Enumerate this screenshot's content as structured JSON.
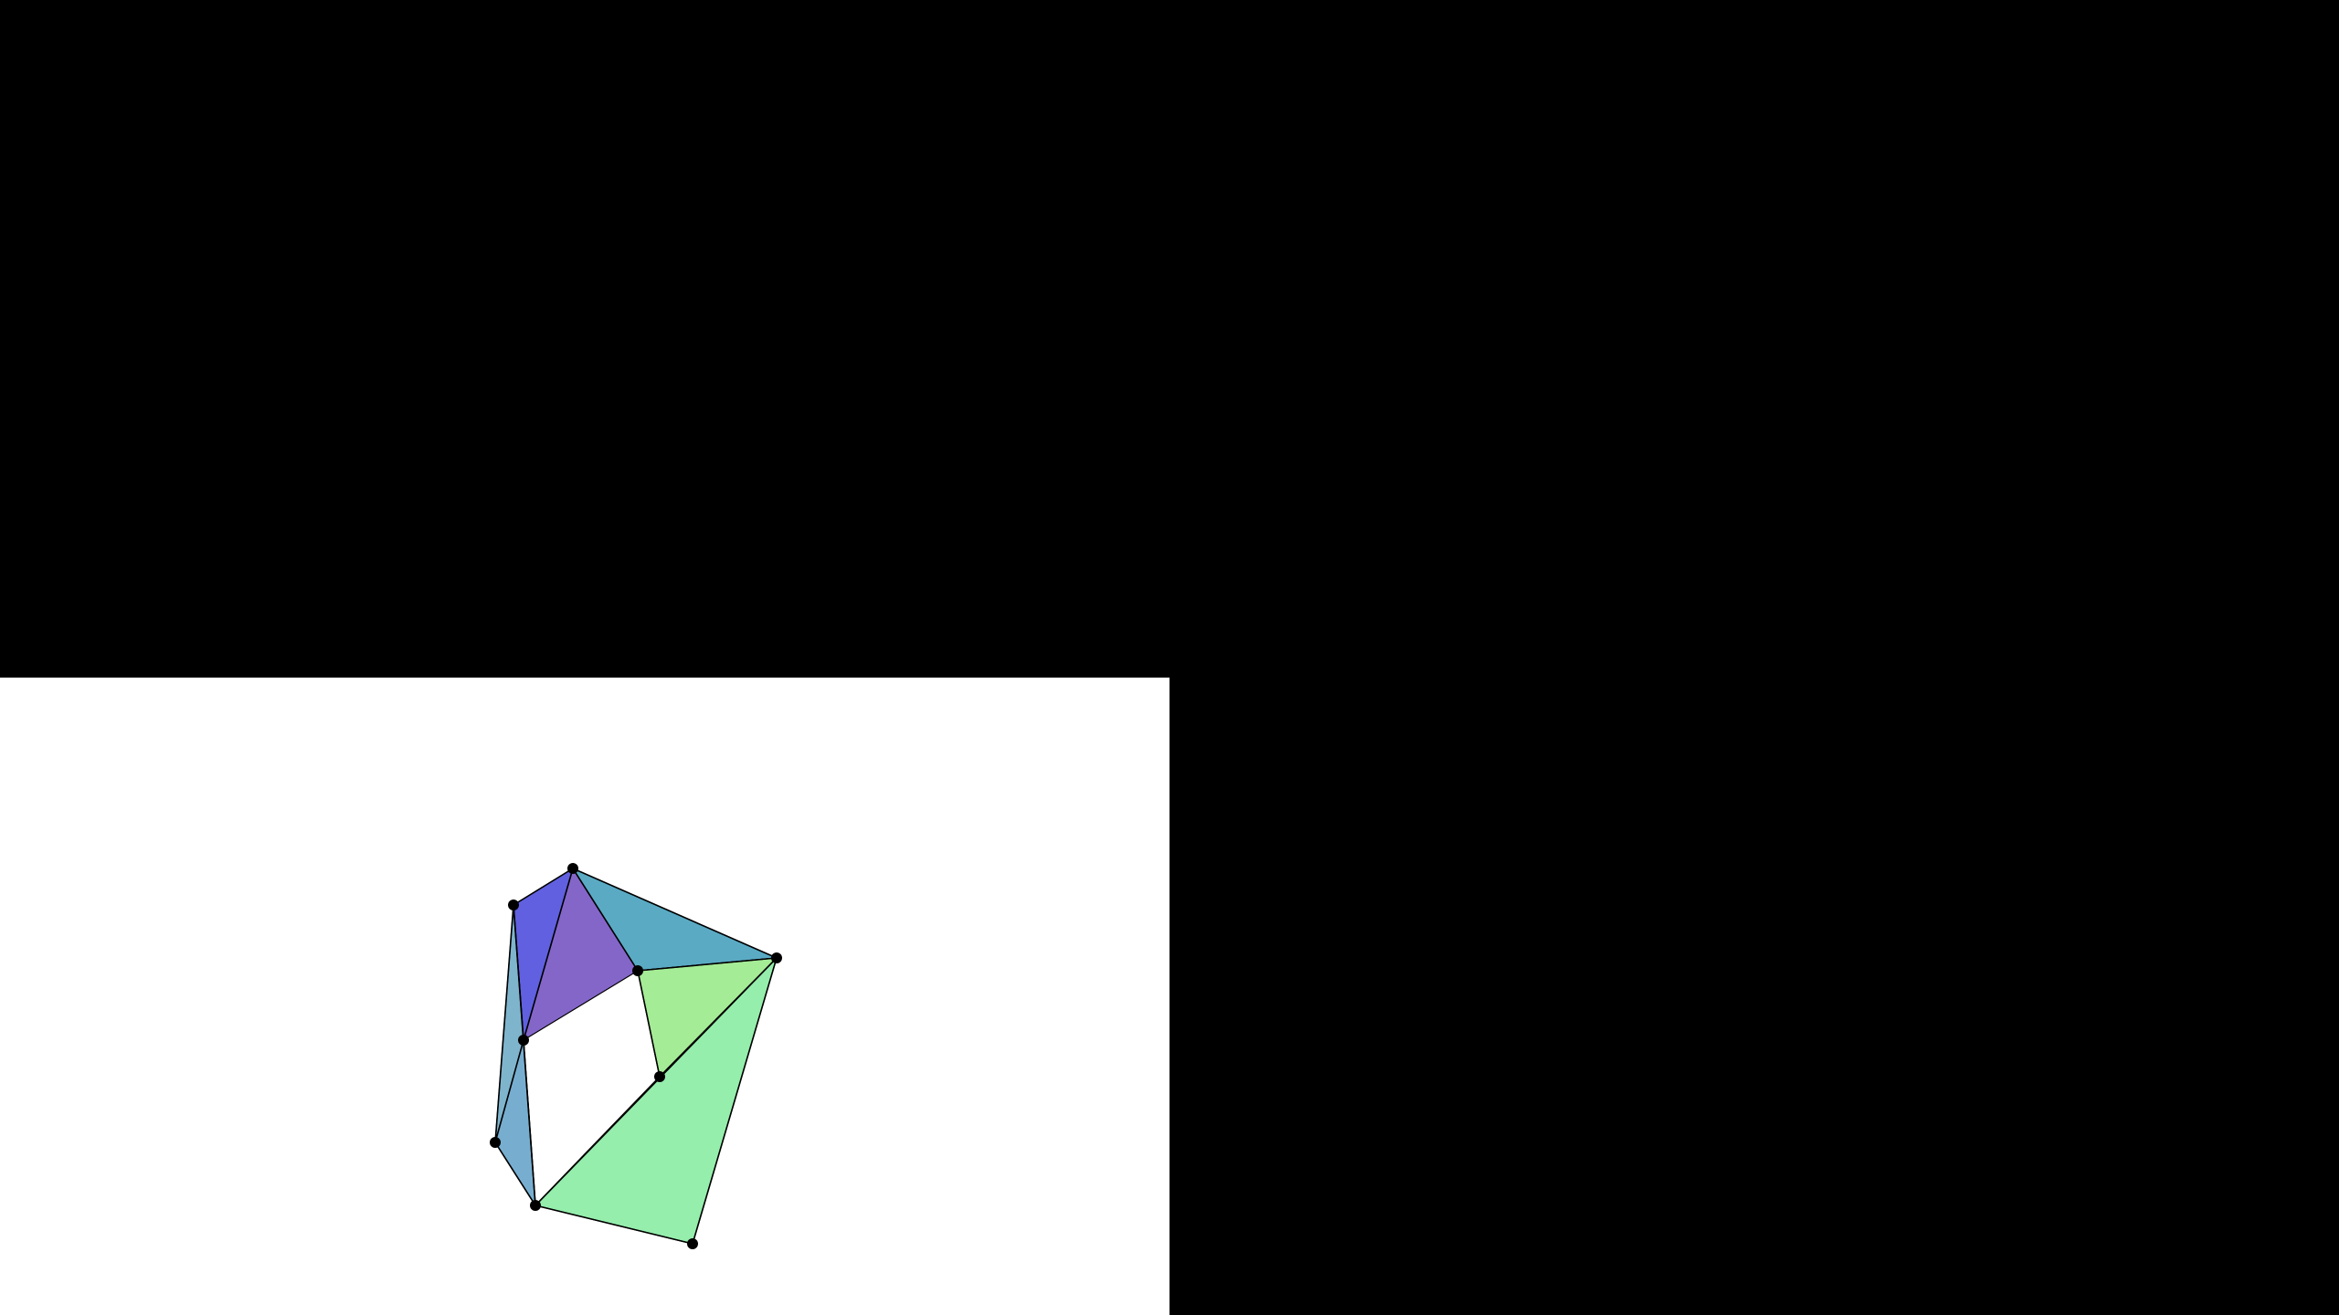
{
  "scene": {
    "background_color": "#000000",
    "viewport_color": "#ffffff",
    "edge_color": "#000000",
    "vertex_color": "#000000"
  },
  "model": {
    "type": "polyhedral-torus",
    "vertices": [
      {
        "id": "v1"
      },
      {
        "id": "v2"
      },
      {
        "id": "v3"
      },
      {
        "id": "v4"
      },
      {
        "id": "v5"
      },
      {
        "id": "v6"
      },
      {
        "id": "v7"
      },
      {
        "id": "v8"
      },
      {
        "id": "v9"
      }
    ],
    "faces": [
      {
        "id": "f1",
        "color": "#6060e0"
      },
      {
        "id": "f2",
        "color": "#8466c9"
      },
      {
        "id": "f3",
        "color": "#5aaac4"
      },
      {
        "id": "f4",
        "color": "#9eef8a"
      },
      {
        "id": "f5",
        "color": "#7fb4cd"
      },
      {
        "id": "f6",
        "color": "#77aed0"
      },
      {
        "id": "f7",
        "color": "#95eeac"
      },
      {
        "id": "f8",
        "color": "#95eeac"
      },
      {
        "id": "f9",
        "color": "#a5ec96"
      }
    ]
  }
}
